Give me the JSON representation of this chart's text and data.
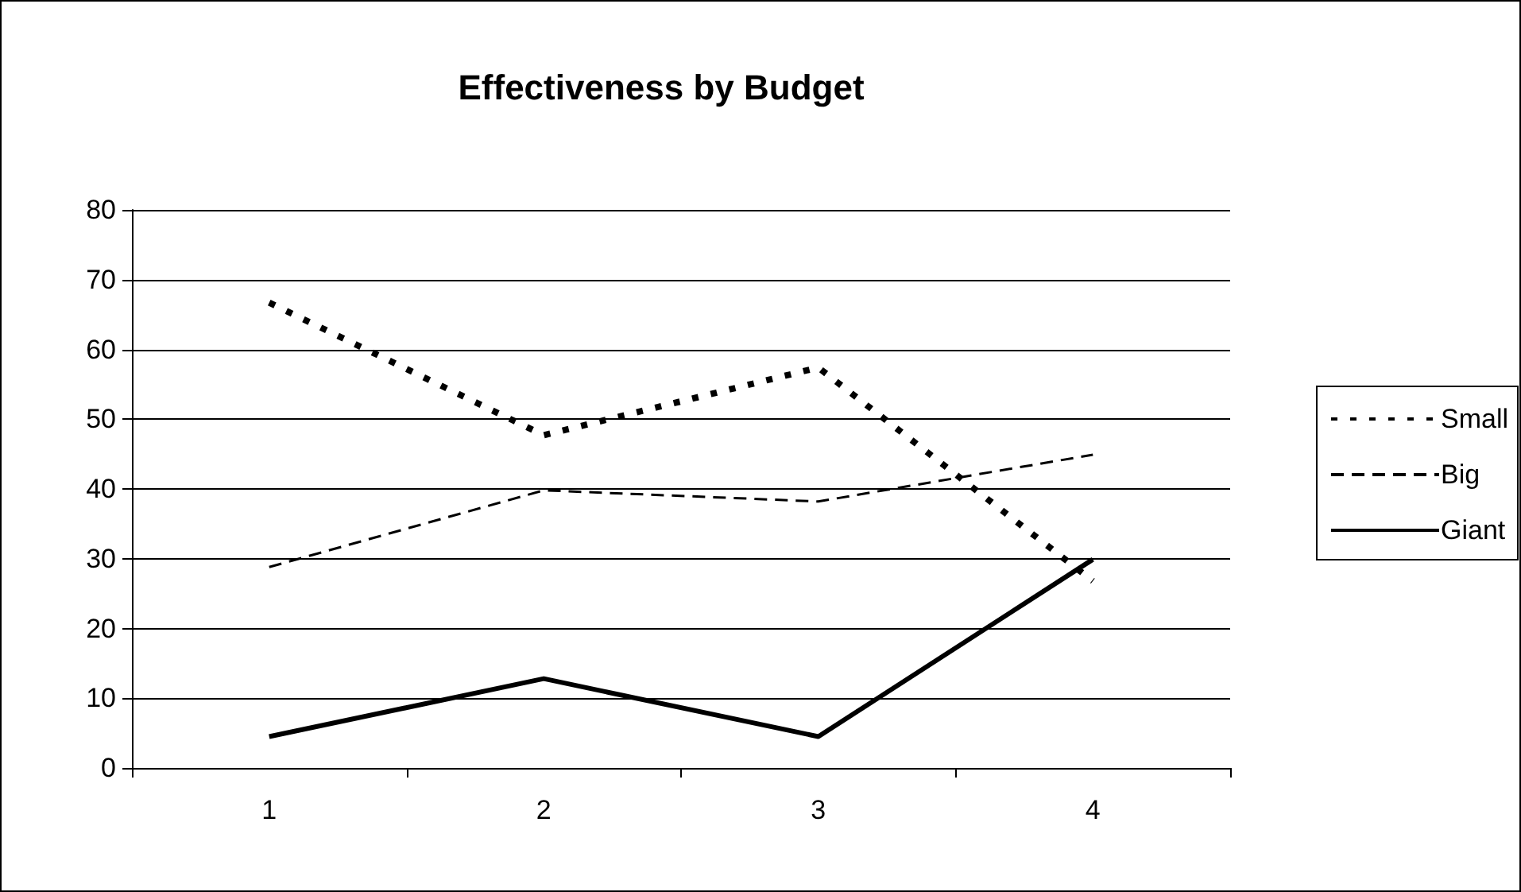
{
  "chart_data": {
    "type": "line",
    "title": "Effectiveness by Budget",
    "categories": [
      "1",
      "2",
      "3",
      "4"
    ],
    "series": [
      {
        "name": "Small",
        "color": "#000000",
        "line_style": "dotted",
        "values": [
          66.7,
          47.7,
          57.4,
          26.8
        ]
      },
      {
        "name": "Big",
        "color": "#000000",
        "line_style": "dashed",
        "values": [
          28.8,
          39.8,
          38.2,
          44.9
        ]
      },
      {
        "name": "Giant",
        "color": "#000000",
        "line_style": "solid",
        "values": [
          4.5,
          12.8,
          4.5,
          29.9
        ]
      }
    ],
    "ylim": [
      0,
      80
    ],
    "yticks": [
      0,
      10,
      20,
      30,
      40,
      50,
      60,
      70,
      80
    ],
    "grid": "y",
    "legend": "right",
    "marker": "none"
  }
}
